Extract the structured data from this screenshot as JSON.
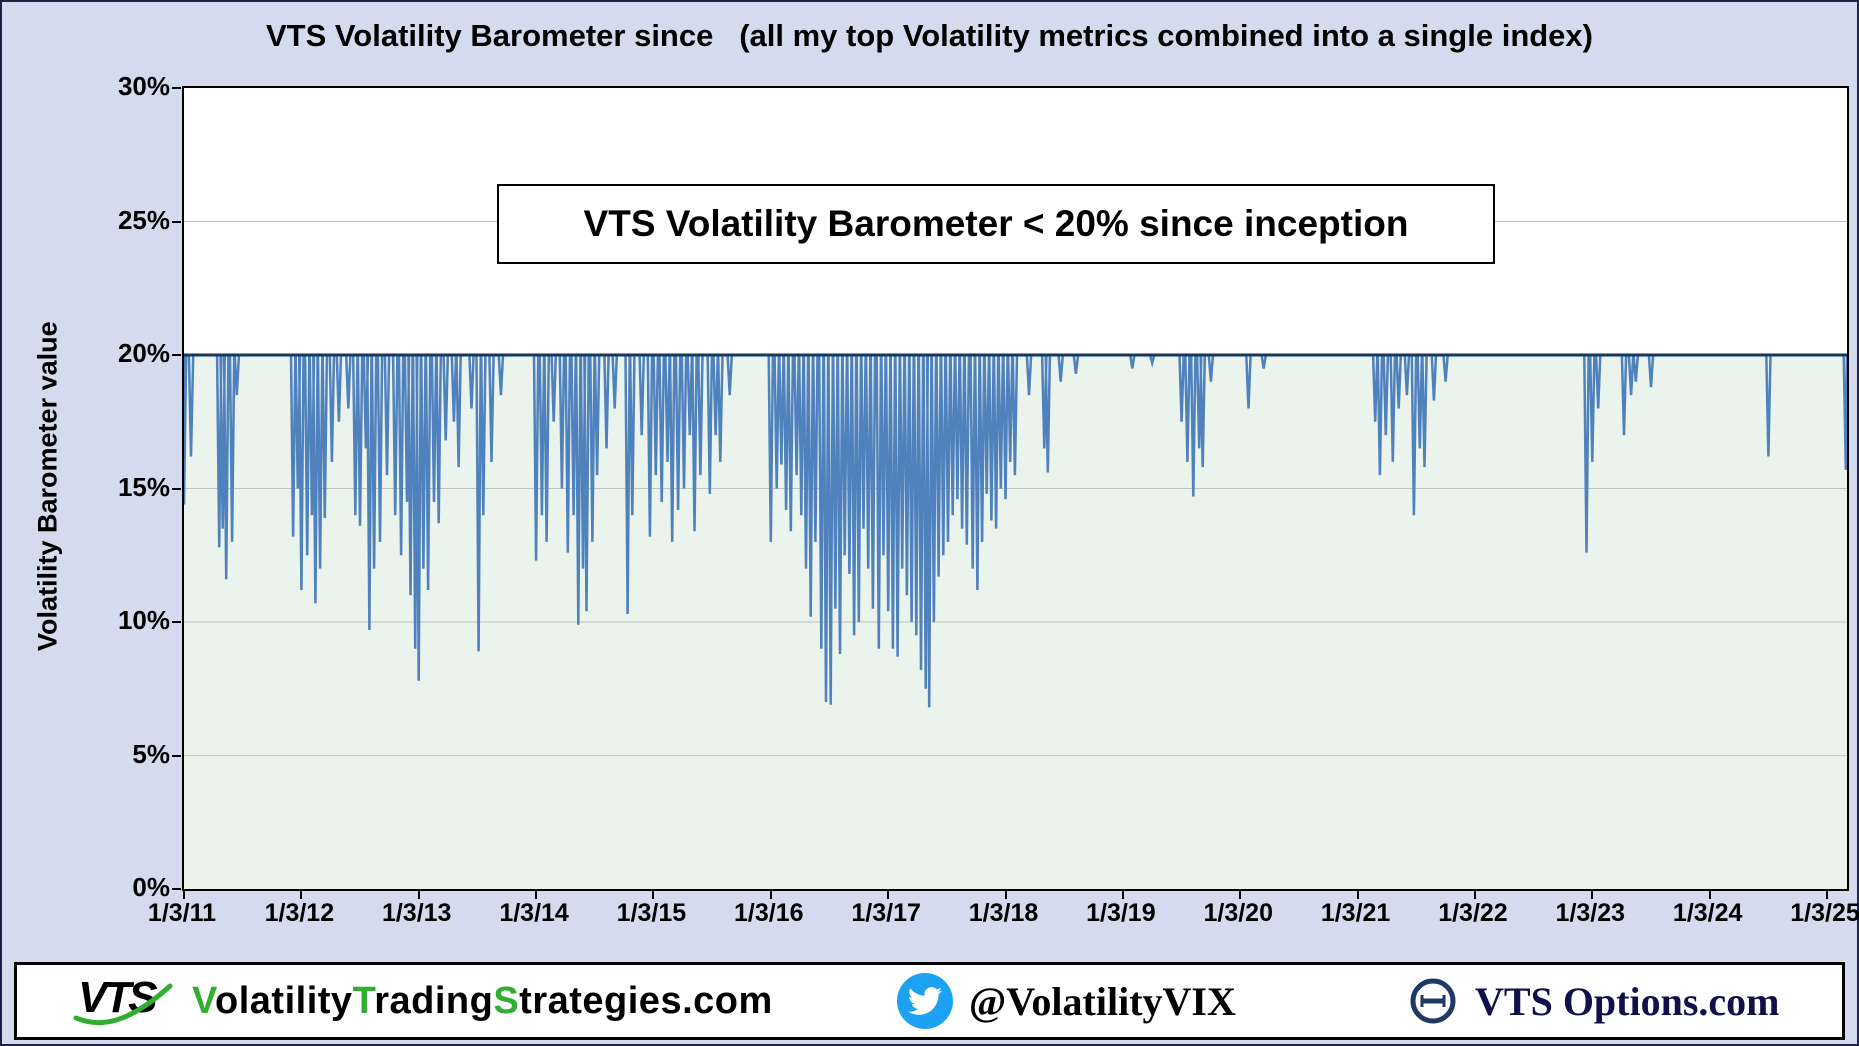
{
  "title": "VTS Volatility Barometer since   (all my top Volatility metrics combined into a single index)",
  "annotation": {
    "text": "VTS Volatility Barometer < 20% since inception"
  },
  "colors": {
    "page_bg": "#d5dbee",
    "plot_bg": "#ffffff",
    "below_threshold_fill": "#eaf3ec",
    "gridline": "#c2c2c2",
    "series_blue": "#4f81bd",
    "threshold_navy": "#17375e",
    "brand_green": "#2fae2f",
    "twitter_blue": "#1da1f2",
    "options_navy": "#203864"
  },
  "chart_data": {
    "type": "line",
    "title": "VTS Volatility Barometer since   (all my top Volatility metrics combined into a single index)",
    "xlabel": "",
    "ylabel": "Volatility Barometer value",
    "ylim": [
      0,
      30
    ],
    "xlim": [
      2011.0,
      2025.17
    ],
    "grid": true,
    "legend_position": "none",
    "annotation": "VTS Volatility Barometer < 20% since inception",
    "yticks": [
      {
        "value": 0,
        "label": "0%"
      },
      {
        "value": 5,
        "label": "5%"
      },
      {
        "value": 10,
        "label": "10%"
      },
      {
        "value": 15,
        "label": "15%"
      },
      {
        "value": 20,
        "label": "20%"
      },
      {
        "value": 25,
        "label": "25%"
      },
      {
        "value": 30,
        "label": "30%"
      }
    ],
    "gridline_values": [
      5,
      10,
      15,
      20,
      25
    ],
    "xticks": [
      {
        "value": 2011,
        "label": "1/3/11"
      },
      {
        "value": 2012,
        "label": "1/3/12"
      },
      {
        "value": 2013,
        "label": "1/3/13"
      },
      {
        "value": 2014,
        "label": "1/3/14"
      },
      {
        "value": 2015,
        "label": "1/3/15"
      },
      {
        "value": 2016,
        "label": "1/3/16"
      },
      {
        "value": 2017,
        "label": "1/3/17"
      },
      {
        "value": 2018,
        "label": "1/3/18"
      },
      {
        "value": 2019,
        "label": "1/3/19"
      },
      {
        "value": 2020,
        "label": "1/3/20"
      },
      {
        "value": 2021,
        "label": "1/3/21"
      },
      {
        "value": 2022,
        "label": "1/3/22"
      },
      {
        "value": 2023,
        "label": "1/3/23"
      },
      {
        "value": 2024,
        "label": "1/3/24"
      },
      {
        "value": 2025,
        "label": "1/3/25"
      }
    ],
    "series": [
      {
        "name": "VTS Volatility Barometer",
        "type": "spike-line",
        "color": "#4f81bd",
        "baseline": 20,
        "spike_half_width": 0.018,
        "spikes": [
          [
            2011.0,
            14.4
          ],
          [
            2011.06,
            16.2
          ],
          [
            2011.3,
            12.8
          ],
          [
            2011.33,
            13.5
          ],
          [
            2011.36,
            11.6
          ],
          [
            2011.41,
            13.0
          ],
          [
            2011.45,
            18.5
          ],
          [
            2011.93,
            13.2
          ],
          [
            2011.97,
            15.0
          ],
          [
            2012.0,
            11.2
          ],
          [
            2012.05,
            12.5
          ],
          [
            2012.09,
            14.0
          ],
          [
            2012.12,
            10.7
          ],
          [
            2012.16,
            12.0
          ],
          [
            2012.2,
            13.9
          ],
          [
            2012.26,
            16.0
          ],
          [
            2012.32,
            17.5
          ],
          [
            2012.4,
            18.0
          ],
          [
            2012.46,
            14.0
          ],
          [
            2012.5,
            13.6
          ],
          [
            2012.55,
            16.5
          ],
          [
            2012.58,
            9.7
          ],
          [
            2012.62,
            12.0
          ],
          [
            2012.67,
            13.0
          ],
          [
            2012.73,
            15.5
          ],
          [
            2012.8,
            14.0
          ],
          [
            2012.85,
            12.5
          ],
          [
            2012.9,
            14.5
          ],
          [
            2012.93,
            11.0
          ],
          [
            2012.97,
            9.0
          ],
          [
            2013.0,
            7.8
          ],
          [
            2013.04,
            12.0
          ],
          [
            2013.08,
            11.2
          ],
          [
            2013.13,
            14.5
          ],
          [
            2013.17,
            13.7
          ],
          [
            2013.23,
            16.8
          ],
          [
            2013.3,
            17.5
          ],
          [
            2013.34,
            15.8
          ],
          [
            2013.45,
            18.0
          ],
          [
            2013.51,
            8.9
          ],
          [
            2013.55,
            14.0
          ],
          [
            2013.62,
            16.0
          ],
          [
            2013.7,
            18.5
          ],
          [
            2014.0,
            12.3
          ],
          [
            2014.05,
            14.0
          ],
          [
            2014.09,
            13.0
          ],
          [
            2014.15,
            17.5
          ],
          [
            2014.22,
            15.0
          ],
          [
            2014.27,
            12.6
          ],
          [
            2014.32,
            14.0
          ],
          [
            2014.36,
            9.9
          ],
          [
            2014.4,
            12.0
          ],
          [
            2014.43,
            10.4
          ],
          [
            2014.48,
            13.0
          ],
          [
            2014.52,
            15.5
          ],
          [
            2014.6,
            16.5
          ],
          [
            2014.67,
            18.0
          ],
          [
            2014.78,
            10.3
          ],
          [
            2014.82,
            14.0
          ],
          [
            2014.9,
            17.0
          ],
          [
            2014.97,
            13.2
          ],
          [
            2015.02,
            15.5
          ],
          [
            2015.07,
            14.5
          ],
          [
            2015.12,
            16.0
          ],
          [
            2015.16,
            13.0
          ],
          [
            2015.21,
            14.2
          ],
          [
            2015.26,
            15.0
          ],
          [
            2015.31,
            17.0
          ],
          [
            2015.35,
            13.4
          ],
          [
            2015.4,
            15.5
          ],
          [
            2015.48,
            14.8
          ],
          [
            2015.53,
            17.0
          ],
          [
            2015.57,
            16.0
          ],
          [
            2015.65,
            18.5
          ],
          [
            2016.0,
            13.0
          ],
          [
            2016.05,
            15.0
          ],
          [
            2016.09,
            15.9
          ],
          [
            2016.13,
            14.2
          ],
          [
            2016.17,
            13.4
          ],
          [
            2016.22,
            15.5
          ],
          [
            2016.26,
            14.0
          ],
          [
            2016.3,
            12.0
          ],
          [
            2016.34,
            10.2
          ],
          [
            2016.38,
            13.0
          ],
          [
            2016.43,
            9.0
          ],
          [
            2016.47,
            7.0
          ],
          [
            2016.51,
            6.9
          ],
          [
            2016.55,
            10.5
          ],
          [
            2016.59,
            8.8
          ],
          [
            2016.63,
            12.5
          ],
          [
            2016.67,
            11.8
          ],
          [
            2016.71,
            9.5
          ],
          [
            2016.75,
            10.0
          ],
          [
            2016.79,
            13.5
          ],
          [
            2016.83,
            12.0
          ],
          [
            2016.87,
            10.5
          ],
          [
            2016.92,
            9.0
          ],
          [
            2016.96,
            12.5
          ],
          [
            2017.0,
            10.4
          ],
          [
            2017.04,
            9.0
          ],
          [
            2017.08,
            8.7
          ],
          [
            2017.12,
            12.0
          ],
          [
            2017.16,
            11.0
          ],
          [
            2017.2,
            10.0
          ],
          [
            2017.24,
            9.5
          ],
          [
            2017.28,
            8.2
          ],
          [
            2017.32,
            7.5
          ],
          [
            2017.35,
            6.8
          ],
          [
            2017.39,
            10.0
          ],
          [
            2017.43,
            11.7
          ],
          [
            2017.47,
            12.5
          ],
          [
            2017.51,
            13.0
          ],
          [
            2017.55,
            14.0
          ],
          [
            2017.59,
            14.6
          ],
          [
            2017.63,
            13.5
          ],
          [
            2017.67,
            12.9
          ],
          [
            2017.72,
            12.0
          ],
          [
            2017.76,
            11.2
          ],
          [
            2017.8,
            13.0
          ],
          [
            2017.84,
            14.8
          ],
          [
            2017.88,
            13.8
          ],
          [
            2017.92,
            13.5
          ],
          [
            2017.96,
            15.0
          ],
          [
            2018.0,
            14.6
          ],
          [
            2018.04,
            16.0
          ],
          [
            2018.08,
            15.5
          ],
          [
            2018.2,
            18.5
          ],
          [
            2018.33,
            16.5
          ],
          [
            2018.36,
            15.6
          ],
          [
            2018.47,
            19.0
          ],
          [
            2018.6,
            19.3
          ],
          [
            2019.08,
            19.5
          ],
          [
            2019.25,
            19.7
          ],
          [
            2019.5,
            17.5
          ],
          [
            2019.55,
            16.0
          ],
          [
            2019.6,
            14.7
          ],
          [
            2019.65,
            16.5
          ],
          [
            2019.68,
            15.8
          ],
          [
            2019.75,
            19.0
          ],
          [
            2020.07,
            18.0
          ],
          [
            2020.2,
            19.5
          ],
          [
            2021.15,
            17.5
          ],
          [
            2021.19,
            15.5
          ],
          [
            2021.24,
            17.0
          ],
          [
            2021.3,
            16.0
          ],
          [
            2021.35,
            18.0
          ],
          [
            2021.42,
            18.5
          ],
          [
            2021.48,
            14.0
          ],
          [
            2021.53,
            16.5
          ],
          [
            2021.57,
            15.8
          ],
          [
            2021.65,
            18.3
          ],
          [
            2021.75,
            19.0
          ],
          [
            2022.95,
            12.6
          ],
          [
            2023.0,
            16.0
          ],
          [
            2023.05,
            18.0
          ],
          [
            2023.27,
            17.0
          ],
          [
            2023.33,
            18.5
          ],
          [
            2023.37,
            19.0
          ],
          [
            2023.5,
            18.8
          ],
          [
            2024.5,
            16.2
          ],
          [
            2025.16,
            15.7
          ]
        ]
      },
      {
        "name": "20% threshold line",
        "type": "hline",
        "color": "#17375e",
        "y": 20
      }
    ]
  },
  "footer": {
    "logo_text": "VTS",
    "site_segments": [
      {
        "text": "V",
        "color": "#2fae2f"
      },
      {
        "text": "olatility",
        "color": "#000000"
      },
      {
        "text": "T",
        "color": "#2fae2f"
      },
      {
        "text": "rading",
        "color": "#000000"
      },
      {
        "text": "S",
        "color": "#2fae2f"
      },
      {
        "text": "trategies",
        "color": "#000000"
      },
      {
        "text": ".com",
        "color": "#000000"
      }
    ],
    "twitter_handle": "@VolatilityVIX",
    "options_site": "VTS Options.com"
  }
}
